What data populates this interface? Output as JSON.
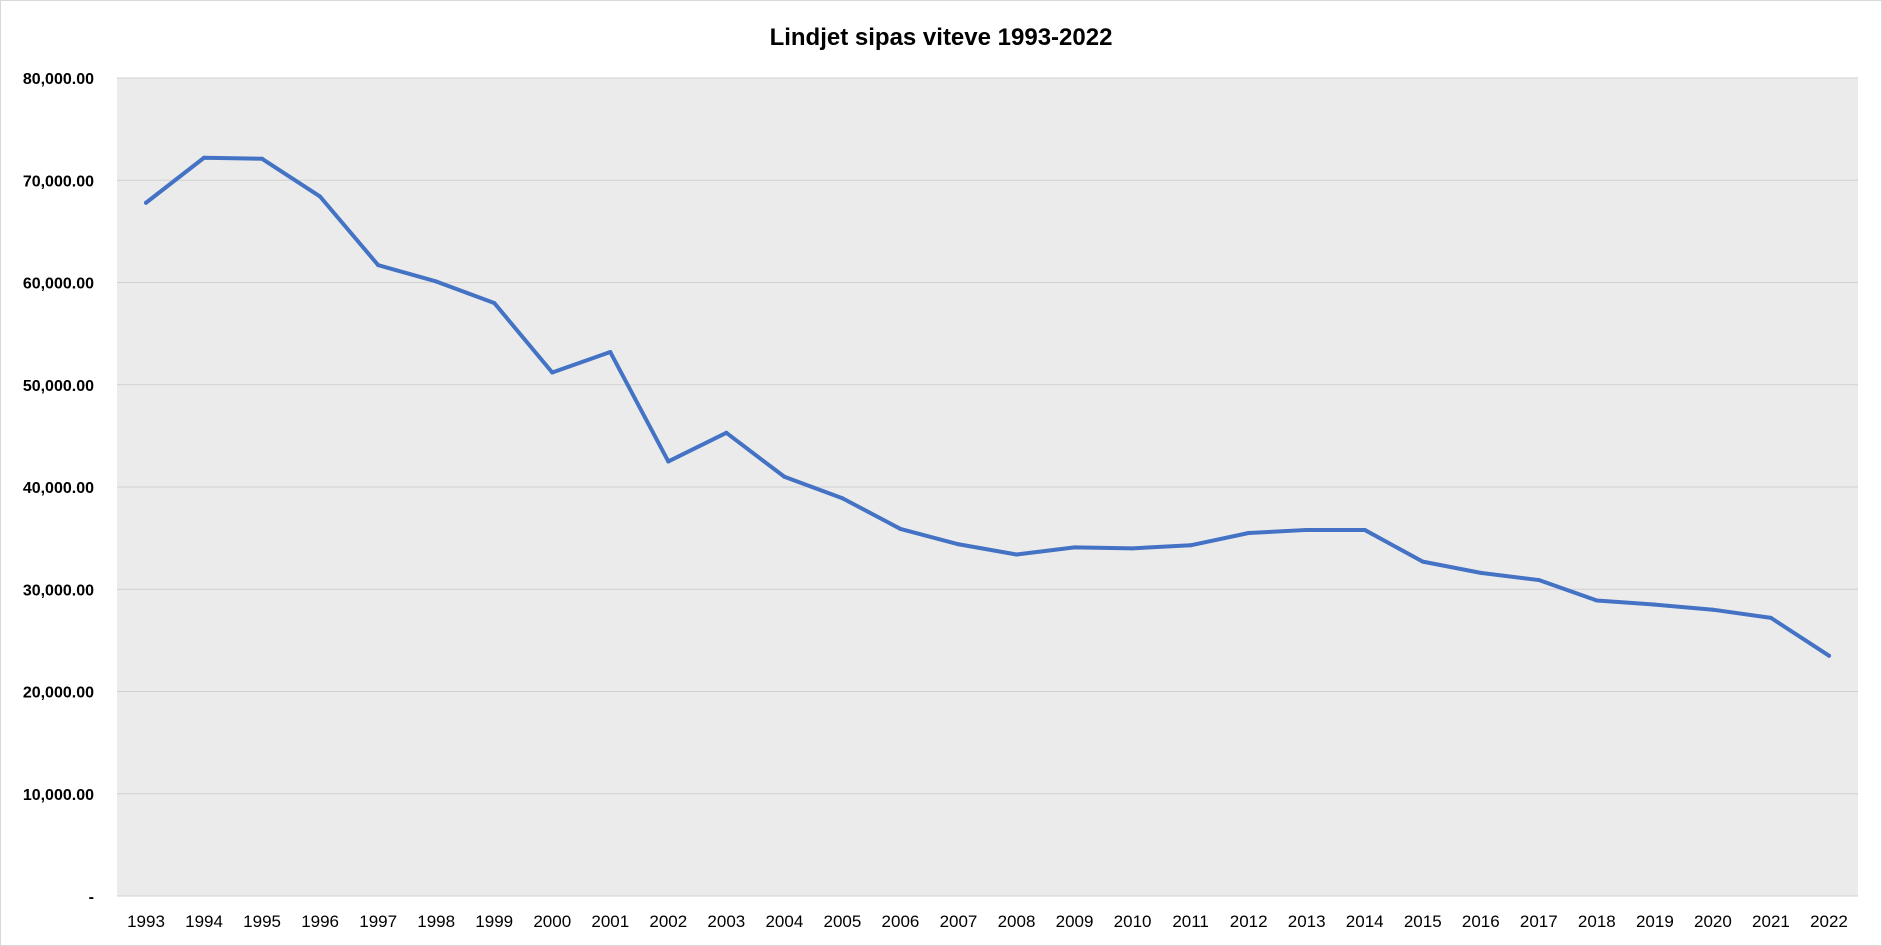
{
  "chart_data": {
    "type": "line",
    "title": "Lindjet sipas viteve 1993-2022",
    "xlabel": "",
    "ylabel": "",
    "categories": [
      "1993",
      "1994",
      "1995",
      "1996",
      "1997",
      "1998",
      "1999",
      "2000",
      "2001",
      "2002",
      "2003",
      "2004",
      "2005",
      "2006",
      "2007",
      "2008",
      "2009",
      "2010",
      "2011",
      "2012",
      "2013",
      "2014",
      "2015",
      "2016",
      "2017",
      "2018",
      "2019",
      "2020",
      "2021",
      "2022"
    ],
    "series": [
      {
        "values": [
          67800,
          72200,
          72100,
          68400,
          61700,
          60100,
          58000,
          51200,
          53200,
          42500,
          45300,
          41000,
          38900,
          35900,
          34400,
          33400,
          34100,
          34000,
          34300,
          35500,
          35800,
          35800,
          32700,
          31600,
          30900,
          28900,
          28500,
          28000,
          27200,
          23500
        ],
        "color": "#4472c4"
      }
    ],
    "ylim": [
      0,
      80000
    ],
    "yticks": [
      0,
      10000,
      20000,
      30000,
      40000,
      50000,
      60000,
      70000,
      80000
    ],
    "ytick_labels": [
      "-",
      "10,000.00",
      "20,000.00",
      "30,000.00",
      "40,000.00",
      "50,000.00",
      "60,000.00",
      "70,000.00",
      "80,000.00"
    ],
    "grid": true,
    "legend": "none",
    "plot_background": "#ebebeb",
    "gridline_color": "#d0d0d0"
  }
}
